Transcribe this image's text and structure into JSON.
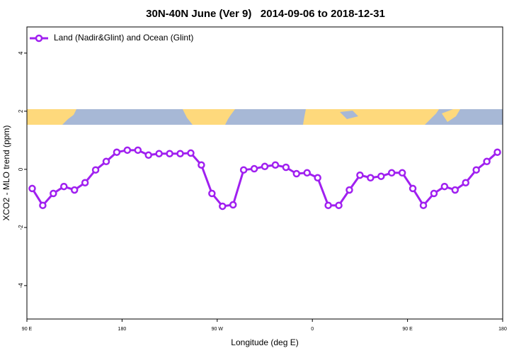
{
  "chart_data": {
    "type": "line",
    "title": "30N-40N June (Ver 9)   2014-09-06 to 2018-12-31",
    "x_label": "Longitude (deg E)",
    "y_label": "XCO2 - MLO trend (ppm)",
    "x": [
      95,
      105,
      115,
      125,
      135,
      145,
      155,
      165,
      175,
      185,
      195,
      205,
      215,
      225,
      235,
      245,
      255,
      265,
      275,
      285,
      295,
      305,
      315,
      325,
      335,
      345,
      355,
      365,
      375,
      385,
      395,
      405,
      415,
      425,
      435,
      445,
      455,
      465,
      475,
      485,
      495,
      505,
      515,
      525,
      535
    ],
    "series": [
      {
        "name": "Land (Nadir&Glint) and Ocean (Glint)",
        "color": "#a020f0",
        "values": [
          -0.66,
          -1.24,
          -0.83,
          -0.59,
          -0.71,
          -0.46,
          -0.02,
          0.27,
          0.59,
          0.66,
          0.66,
          0.49,
          0.54,
          0.54,
          0.54,
          0.56,
          0.15,
          -0.83,
          -1.27,
          -1.22,
          -0.02,
          0.02,
          0.1,
          0.15,
          0.07,
          -0.15,
          -0.12,
          -0.29,
          -1.24,
          -1.24,
          -0.71,
          -0.2,
          -0.29,
          -0.24,
          -0.12,
          -0.12,
          -0.66,
          -1.24,
          -0.83,
          -0.59,
          -0.71,
          -0.46,
          -0.02,
          0.27,
          0.59
        ]
      }
    ],
    "xlim": [
      90,
      540
    ],
    "xticks": [
      {
        "value": 90,
        "label": "90 E"
      },
      180,
      {
        "value": 270,
        "label": "90 W"
      },
      {
        "value": 360,
        "label": "0"
      },
      {
        "value": 450,
        "label": "90 E"
      },
      {
        "value": 540,
        "label": "180"
      }
    ],
    "ylim": [
      -5.15,
      4.9
    ],
    "yticks": [
      -4,
      -2,
      0,
      2,
      4
    ],
    "legend": "top-left"
  }
}
